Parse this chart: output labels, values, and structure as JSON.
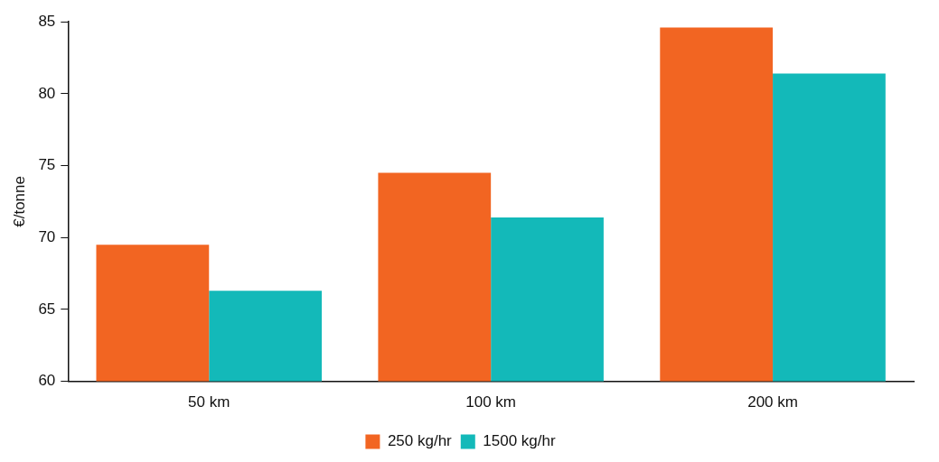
{
  "chart_data": {
    "type": "bar",
    "ylabel": "€/tonne",
    "categories": [
      "50 km",
      "100 km",
      "200 km"
    ],
    "series": [
      {
        "name": "250 kg/hr",
        "color": "#f26522",
        "values": [
          69.5,
          74.5,
          84.6
        ]
      },
      {
        "name": "1500 kg/hr",
        "color": "#13b9b9",
        "values": [
          66.3,
          71.4,
          81.4
        ]
      }
    ],
    "ylim": [
      60,
      85
    ],
    "yticks": [
      60,
      65,
      70,
      75,
      80,
      85
    ],
    "grid": false,
    "legend": "bottom"
  }
}
